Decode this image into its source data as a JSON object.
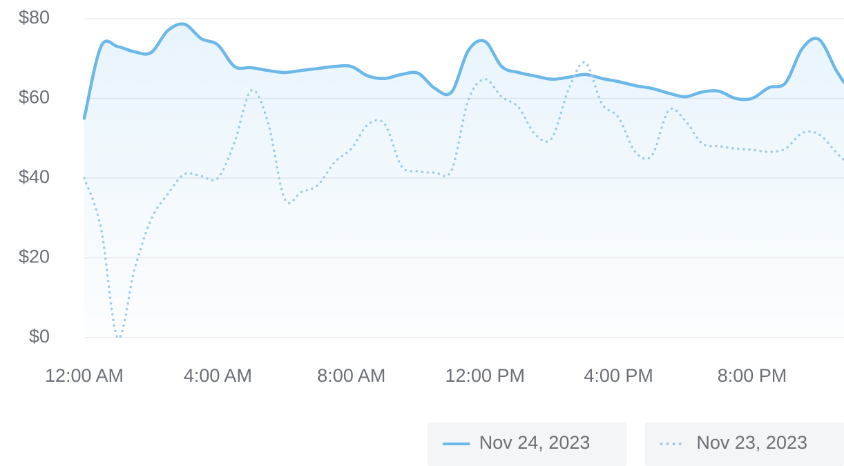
{
  "chart_data": {
    "type": "line",
    "x": [
      0,
      0.5,
      1,
      1.5,
      2,
      2.5,
      3,
      3.5,
      4,
      4.5,
      5,
      5.5,
      6,
      6.5,
      7,
      7.5,
      8,
      8.5,
      9,
      9.5,
      10,
      10.5,
      11,
      11.5,
      12,
      12.5,
      13,
      13.5,
      14,
      14.5,
      15,
      15.5,
      16,
      16.5,
      17,
      17.5,
      18,
      18.5,
      19,
      19.5,
      20,
      20.5,
      21,
      21.5,
      22,
      22.5,
      22.75
    ],
    "series": [
      {
        "name": "Nov 24, 2023",
        "color": "#6cb8e8",
        "style": "solid",
        "values": [
          55,
          73,
          73,
          71.7,
          71.5,
          77,
          78.6,
          75,
          73.4,
          68,
          67.7,
          67,
          66.5,
          67,
          67.5,
          68,
          68,
          65.6,
          65,
          66,
          66.3,
          62.5,
          61.6,
          72,
          74.3,
          68,
          66.5,
          65.6,
          64.8,
          65.3,
          66,
          65,
          64.2,
          63.2,
          62.5,
          61.3,
          60.4,
          61.6,
          61.8,
          60,
          60,
          62.7,
          63.9,
          72.5,
          74.8,
          67.3,
          64
        ]
      },
      {
        "name": "Nov 23, 2023",
        "color": "#9ecbe6",
        "style": "dotted",
        "values": [
          40,
          27.5,
          0,
          17,
          29.6,
          36,
          41,
          40.5,
          40,
          49,
          62,
          54,
          34.8,
          36.5,
          38.3,
          44,
          47.4,
          53.5,
          53.5,
          43,
          41.7,
          41.4,
          42,
          59.6,
          64.8,
          60.4,
          57.8,
          51,
          50,
          62.2,
          69,
          58.7,
          55.2,
          46.6,
          45.7,
          57,
          54.4,
          48.7,
          48,
          47.4,
          47.1,
          46.6,
          47.4,
          51.3,
          51,
          46.6,
          44.5
        ]
      }
    ],
    "xlim": [
      0,
      22.75
    ],
    "xticks": [
      {
        "value": 0,
        "label": "12:00 AM"
      },
      {
        "value": 4,
        "label": "4:00 AM"
      },
      {
        "value": 8,
        "label": "8:00 AM"
      },
      {
        "value": 12,
        "label": "12:00 PM"
      },
      {
        "value": 16,
        "label": "4:00 PM"
      },
      {
        "value": 20,
        "label": "8:00 PM"
      }
    ],
    "ylim": [
      0,
      80
    ],
    "yticks": [
      {
        "value": 0,
        "label": "$0"
      },
      {
        "value": 20,
        "label": "$20"
      },
      {
        "value": 40,
        "label": "$40"
      },
      {
        "value": 60,
        "label": "$60"
      },
      {
        "value": 80,
        "label": "$80"
      }
    ],
    "grid": true,
    "legend": "bottom-right"
  }
}
